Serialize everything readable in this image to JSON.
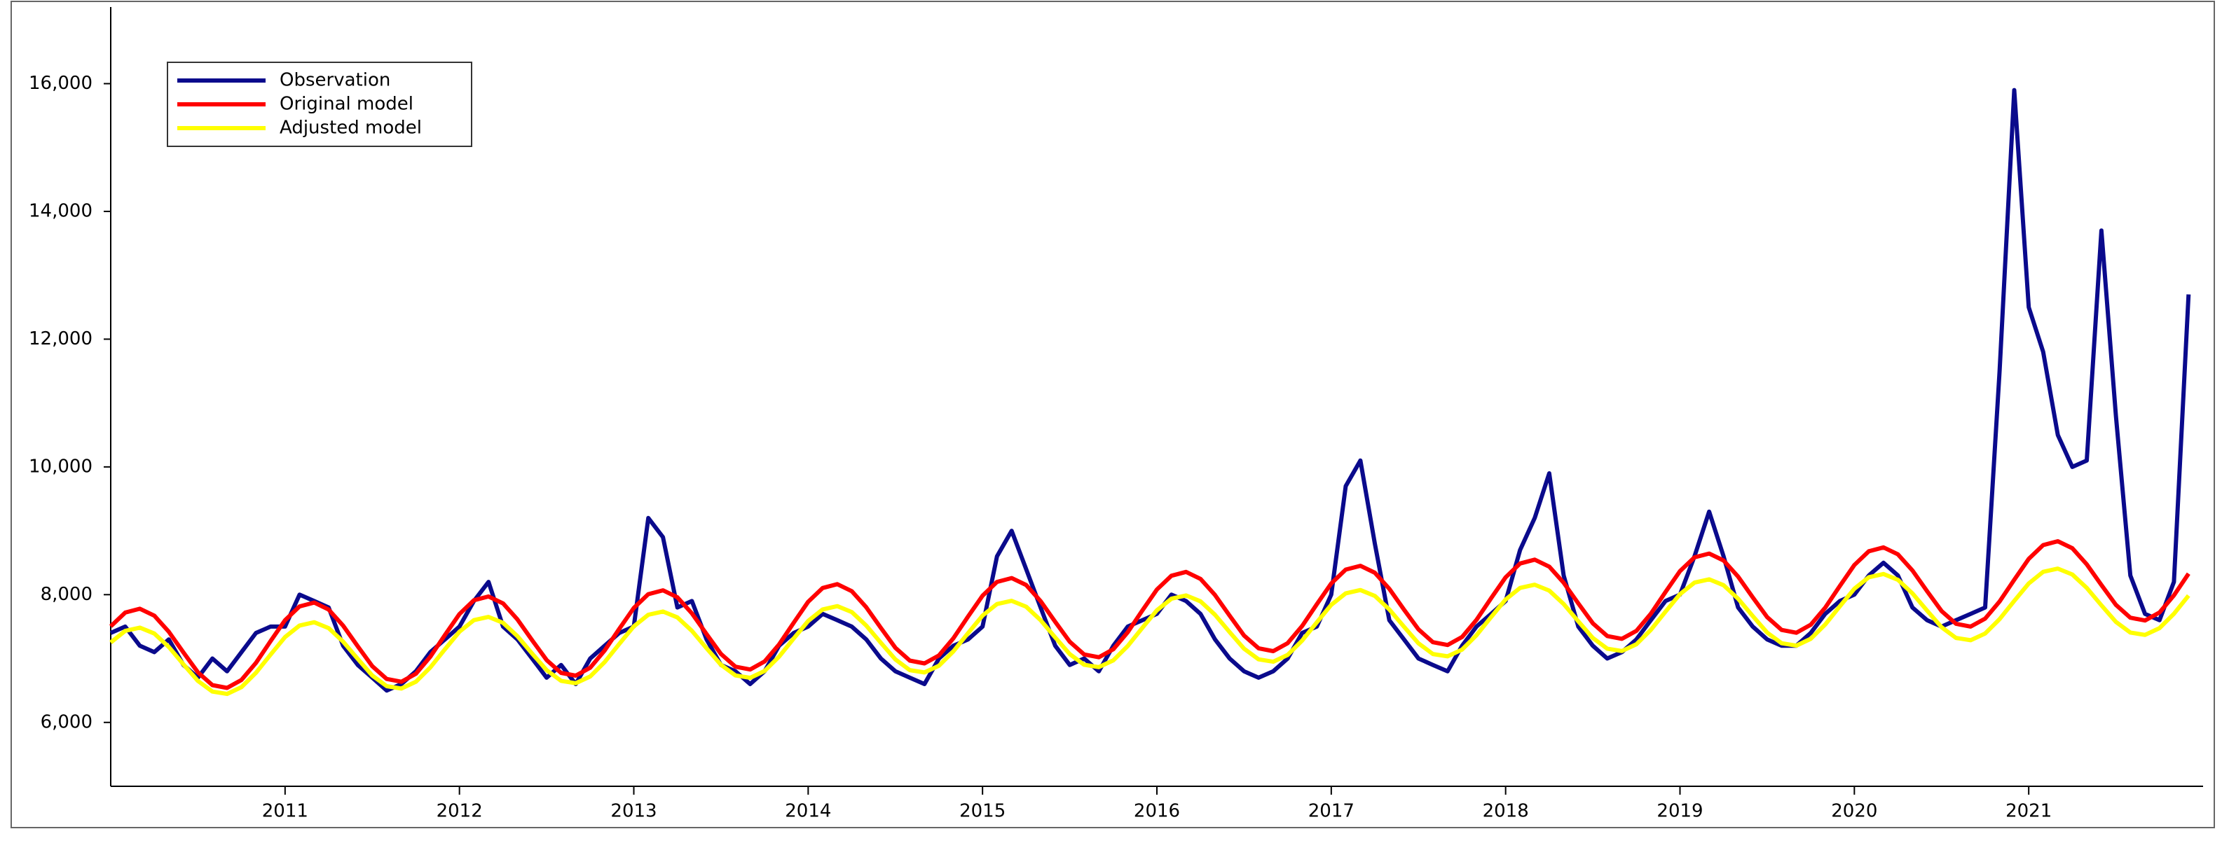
{
  "chart_data": {
    "type": "line",
    "x": [
      2010,
      2010.083,
      2010.167,
      2010.25,
      2010.333,
      2010.417,
      2010.5,
      2010.583,
      2010.667,
      2010.75,
      2010.833,
      2010.917,
      2011,
      2011.083,
      2011.167,
      2011.25,
      2011.333,
      2011.417,
      2011.5,
      2011.583,
      2011.667,
      2011.75,
      2011.833,
      2011.917,
      2012,
      2012.083,
      2012.167,
      2012.25,
      2012.333,
      2012.417,
      2012.5,
      2012.583,
      2012.667,
      2012.75,
      2012.833,
      2012.917,
      2013,
      2013.083,
      2013.167,
      2013.25,
      2013.333,
      2013.417,
      2013.5,
      2013.583,
      2013.667,
      2013.75,
      2013.833,
      2013.917,
      2014,
      2014.083,
      2014.167,
      2014.25,
      2014.333,
      2014.417,
      2014.5,
      2014.583,
      2014.667,
      2014.75,
      2014.833,
      2014.917,
      2015,
      2015.083,
      2015.167,
      2015.25,
      2015.333,
      2015.417,
      2015.5,
      2015.583,
      2015.667,
      2015.75,
      2015.833,
      2015.917,
      2016,
      2016.083,
      2016.167,
      2016.25,
      2016.333,
      2016.417,
      2016.5,
      2016.583,
      2016.667,
      2016.75,
      2016.833,
      2016.917,
      2017,
      2017.083,
      2017.167,
      2017.25,
      2017.333,
      2017.417,
      2017.5,
      2017.583,
      2017.667,
      2017.75,
      2017.833,
      2017.917,
      2018,
      2018.083,
      2018.167,
      2018.25,
      2018.333,
      2018.417,
      2018.5,
      2018.583,
      2018.667,
      2018.75,
      2018.833,
      2018.917,
      2019,
      2019.083,
      2019.167,
      2019.25,
      2019.333,
      2019.417,
      2019.5,
      2019.583,
      2019.667,
      2019.75,
      2019.833,
      2019.917,
      2020,
      2020.083,
      2020.167,
      2020.25,
      2020.333,
      2020.417,
      2020.5,
      2020.583,
      2020.667,
      2020.75,
      2020.833,
      2020.917,
      2021,
      2021.083,
      2021.167,
      2021.25,
      2021.333,
      2021.417,
      2021.5,
      2021.583,
      2021.667,
      2021.75,
      2021.833,
      2021.917
    ],
    "series": [
      {
        "name": "Observation",
        "color": "#0a0a8c",
        "values": [
          7400,
          7500,
          7200,
          7100,
          7300,
          6900,
          6700,
          7000,
          6800,
          7100,
          7400,
          7500,
          7500,
          8000,
          7900,
          7800,
          7200,
          6900,
          6700,
          6500,
          6600,
          6800,
          7100,
          7300,
          7500,
          7900,
          8200,
          7500,
          7300,
          7000,
          6700,
          6900,
          6600,
          7000,
          7200,
          7400,
          7500,
          9200,
          8900,
          7800,
          7900,
          7300,
          6900,
          6800,
          6600,
          6800,
          7200,
          7400,
          7500,
          7700,
          7600,
          7500,
          7300,
          7000,
          6800,
          6700,
          6600,
          7000,
          7200,
          7300,
          7500,
          8600,
          9000,
          8400,
          7800,
          7200,
          6900,
          7000,
          6800,
          7200,
          7500,
          7600,
          7700,
          8000,
          7900,
          7700,
          7300,
          7000,
          6800,
          6700,
          6800,
          7000,
          7400,
          7500,
          8000,
          9700,
          10100,
          8800,
          7600,
          7300,
          7000,
          6900,
          6800,
          7200,
          7500,
          7700,
          7900,
          8700,
          9200,
          9900,
          8300,
          7500,
          7200,
          7000,
          7100,
          7300,
          7600,
          7900,
          8000,
          8600,
          9300,
          8600,
          7800,
          7500,
          7300,
          7200,
          7200,
          7400,
          7700,
          7900,
          8000,
          8300,
          8500,
          8300,
          7800,
          7600,
          7500,
          7600,
          7700,
          7800,
          11500,
          15900,
          12500,
          11800,
          10500,
          10000,
          10100,
          13700,
          10800,
          8300,
          7700,
          7600,
          8200,
          12700
        ]
      },
      {
        "name": "Original model",
        "color": "#ff0000",
        "values": [
          7504,
          7720,
          7780,
          7671,
          7419,
          7095,
          6784,
          6584,
          6540,
          6665,
          6933,
          7273,
          7600,
          7816,
          7876,
          7767,
          7515,
          7191,
          6880,
          6680,
          6636,
          6761,
          7029,
          7369,
          7696,
          7912,
          7972,
          7863,
          7611,
          7287,
          6976,
          6776,
          6732,
          6857,
          7125,
          7465,
          7792,
          8008,
          8068,
          7959,
          7707,
          7383,
          7072,
          6872,
          6828,
          6953,
          7221,
          7561,
          7888,
          8104,
          8164,
          8055,
          7803,
          7479,
          7168,
          6968,
          6924,
          7049,
          7317,
          7657,
          7984,
          8200,
          8260,
          8151,
          7899,
          7575,
          7264,
          7064,
          7020,
          7145,
          7413,
          7753,
          8080,
          8296,
          8356,
          8247,
          7995,
          7671,
          7360,
          7160,
          7116,
          7241,
          7509,
          7849,
          8176,
          8392,
          8452,
          8343,
          8091,
          7767,
          7456,
          7256,
          7212,
          7337,
          7605,
          7945,
          8272,
          8488,
          8548,
          8439,
          8187,
          7863,
          7552,
          7352,
          7308,
          7433,
          7701,
          8041,
          8368,
          8584,
          8644,
          8535,
          8283,
          7959,
          7648,
          7448,
          7404,
          7529,
          7797,
          8137,
          8464,
          8680,
          8740,
          8631,
          8379,
          8055,
          7744,
          7544,
          7500,
          7625,
          7893,
          8233,
          8560,
          8776,
          8836,
          8727,
          8475,
          8151,
          7840,
          7640,
          7596,
          7721,
          7989,
          8329
        ]
      },
      {
        "name": "Adjusted model",
        "color": "#ffff00",
        "values": [
          7252,
          7433,
          7484,
          7392,
          7181,
          6910,
          6650,
          6483,
          6446,
          6552,
          6777,
          7062,
          7336,
          7517,
          7568,
          7476,
          7265,
          6994,
          6734,
          6567,
          6530,
          6636,
          6861,
          7146,
          7420,
          7601,
          7652,
          7560,
          7349,
          7078,
          6818,
          6651,
          6614,
          6720,
          6945,
          7230,
          7504,
          7685,
          7736,
          7644,
          7433,
          7162,
          6902,
          6735,
          6698,
          6804,
          7029,
          7314,
          7588,
          7769,
          7820,
          7728,
          7517,
          7246,
          6986,
          6819,
          6782,
          6888,
          7113,
          7398,
          7672,
          7853,
          7904,
          7812,
          7601,
          7330,
          7070,
          6903,
          6866,
          6972,
          7197,
          7482,
          7756,
          7937,
          7988,
          7896,
          7685,
          7414,
          7154,
          6987,
          6950,
          7056,
          7281,
          7566,
          7840,
          8021,
          8072,
          7980,
          7769,
          7498,
          7238,
          7071,
          7034,
          7140,
          7365,
          7650,
          7924,
          8105,
          8156,
          8064,
          7853,
          7582,
          7322,
          7155,
          7118,
          7224,
          7449,
          7734,
          8008,
          8189,
          8240,
          8148,
          7937,
          7666,
          7406,
          7239,
          7202,
          7308,
          7533,
          7818,
          8092,
          8273,
          8324,
          8232,
          8021,
          7750,
          7490,
          7323,
          7286,
          7392,
          7617,
          7902,
          8176,
          8357,
          8408,
          8316,
          8105,
          7834,
          7574,
          7407,
          7370,
          7476,
          7701,
          7986
        ]
      }
    ],
    "xlim": [
      2010,
      2022
    ],
    "xticks": [
      2011,
      2012,
      2013,
      2014,
      2015,
      2016,
      2017,
      2018,
      2019,
      2020,
      2021
    ],
    "ylim": [
      5000,
      17200
    ],
    "yticks": [
      {
        "value": 6000,
        "label": "6,000"
      },
      {
        "value": 8000,
        "label": "8,000"
      },
      {
        "value": 10000,
        "label": "10,000"
      },
      {
        "value": 12000,
        "label": "12,000"
      },
      {
        "value": 14000,
        "label": "14,000"
      },
      {
        "value": 16000,
        "label": "16,000"
      }
    ],
    "legend": "upper-left"
  }
}
